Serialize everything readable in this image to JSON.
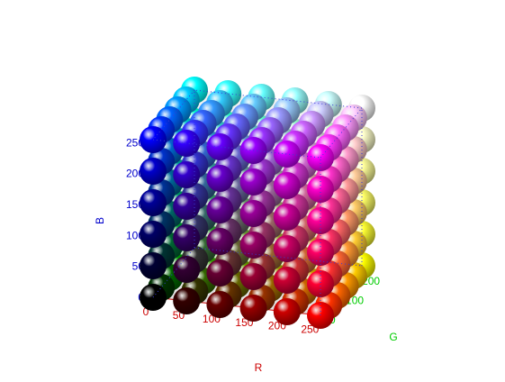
{
  "chart_data": {
    "type": "scatter",
    "projection": "3d",
    "marker": "sphere",
    "marker_color_rule": "rgb(r,g,b) from point coordinates",
    "title": "",
    "axes": {
      "x": {
        "label": "R",
        "color": "#cc0000",
        "range": [
          0,
          255
        ],
        "ticks": [
          0,
          50,
          100,
          150,
          200,
          250
        ]
      },
      "y": {
        "label": "G",
        "color": "#00cc00",
        "range": [
          0,
          255
        ],
        "ticks": [
          0,
          100,
          200
        ]
      },
      "z": {
        "label": "B",
        "color": "#0000cc",
        "range": [
          0,
          255
        ],
        "ticks": [
          0,
          50,
          100,
          150,
          200,
          250
        ]
      }
    },
    "grid_levels": [
      0,
      51,
      102,
      153,
      204,
      255
    ],
    "points_per_axis": 6,
    "total_points": 216,
    "bounding_box": "dotted blue",
    "floor_color": "#e3e3e3",
    "wall_color": "#f2f2f2"
  }
}
